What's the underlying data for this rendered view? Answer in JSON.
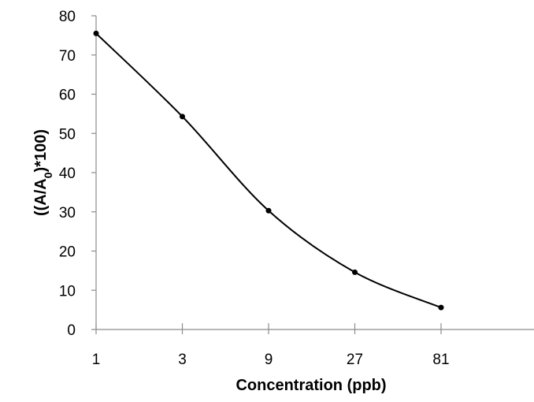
{
  "chart_data": {
    "type": "line",
    "x": [
      "1",
      "3",
      "9",
      "27",
      "81"
    ],
    "series": [
      {
        "values": [
          75.5,
          54.3,
          30.3,
          14.6,
          5.6
        ]
      }
    ],
    "xlabel": "Concentration (ppb)",
    "ylabel": {
      "main": "((A/A",
      "sub": "0",
      "tail": ")*100)"
    },
    "ylim": [
      0,
      80
    ],
    "yticks": [
      "0",
      "10",
      "20",
      "30",
      "40",
      "50",
      "60",
      "70",
      "80"
    ],
    "x_scale": "log3 (categorical spacing)",
    "smooth": true,
    "grid": false,
    "legend": "none",
    "colors": {
      "line": "#000000",
      "axis": "#8c8c8c"
    }
  }
}
